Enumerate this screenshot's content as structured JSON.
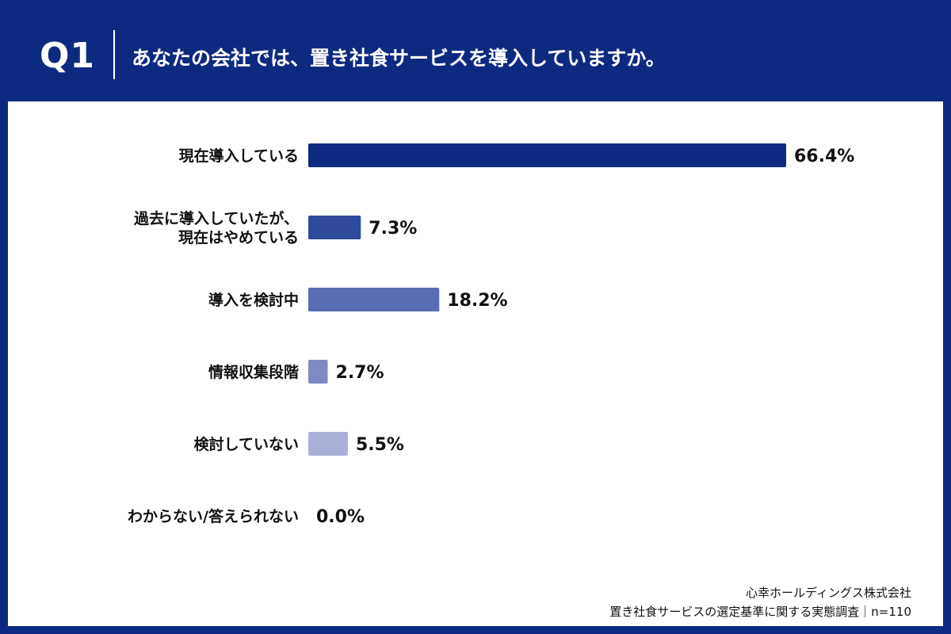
{
  "header": {
    "q_label": "Q1",
    "question": "あなたの会社では、置き社食サービスを導入していますか。"
  },
  "colors": {
    "header_bg": "#0c2b80",
    "panel_bg": "#ffffff",
    "bar_colors": [
      "#0c2b80",
      "#2f4a9a",
      "#5a6cb4",
      "#7f8ac4",
      "#a9afd8",
      "#cdd1e9"
    ]
  },
  "chart_data": {
    "type": "bar",
    "orientation": "horizontal",
    "categories": [
      [
        "現在導入している"
      ],
      [
        "過去に導入していたが、",
        "現在はやめている"
      ],
      [
        "導入を検討中"
      ],
      [
        "情報収集段階"
      ],
      [
        "検討していない"
      ],
      [
        "わからない/答えられない"
      ]
    ],
    "values": [
      66.4,
      7.3,
      18.2,
      2.7,
      5.5,
      0.0
    ],
    "value_labels": [
      "66.4%",
      "7.3%",
      "18.2%",
      "2.7%",
      "5.5%",
      "0.0%"
    ],
    "xlim": [
      0,
      66.4
    ],
    "grid": false,
    "legend": "none"
  },
  "footer": {
    "line1": "心幸ホールディングス株式会社",
    "line2": "置き社食サービスの選定基準に関する実態調査｜n=110"
  }
}
